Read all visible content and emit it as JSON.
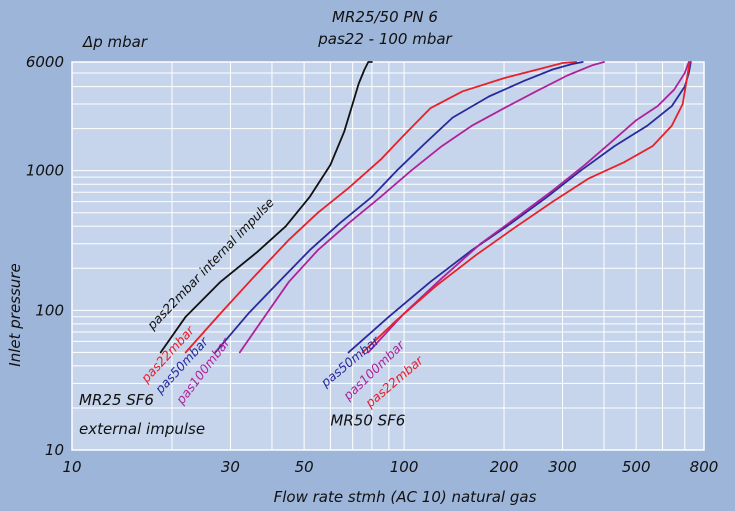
{
  "chart_data": {
    "type": "line",
    "title": "MR25/50 PN 6",
    "subtitle": "pas22 - 100 mbar",
    "xlabel": "Flow rate stmh (AC 10) natural gas",
    "ylabel": "Inlet pressure",
    "unit_label": "Δp  mbar",
    "x_scale": "log",
    "y_scale": "log",
    "xlim": [
      10,
      800
    ],
    "ylim": [
      10,
      6000
    ],
    "x_ticks": [
      10,
      30,
      50,
      100,
      200,
      300,
      500,
      800
    ],
    "x_tick_labels": [
      "10",
      "30",
      "50",
      "100",
      "200",
      "300",
      "500",
      "800"
    ],
    "y_ticks": [
      10,
      100,
      1000,
      6000
    ],
    "y_tick_labels": [
      "10",
      "100",
      "1000",
      "6000"
    ],
    "grid": true,
    "colors": {
      "background": "#9db5d9",
      "plot_area": "#c6d5ec",
      "grid": "#ffffff",
      "black": "#111111",
      "red": "#e8202a",
      "blue": "#2a2a9c",
      "magenta": "#b0229a"
    },
    "annotations": [
      {
        "text": "MR25 SF6",
        "x": 10.5,
        "y": 21
      },
      {
        "text": "external impulse",
        "x": 10.5,
        "y": 13
      },
      {
        "text": "MR50 SF6",
        "x": 60,
        "y": 15
      }
    ],
    "series": [
      {
        "group": "MR25 SF6",
        "label": "pas22mbar internal impulse",
        "color": "#111111",
        "label_anchor": {
          "x": 17.5,
          "y": 72
        },
        "x": [
          18.5,
          22,
          28,
          36,
          44,
          52,
          60,
          66,
          70,
          73,
          76,
          78,
          80
        ],
        "y": [
          50,
          90,
          160,
          260,
          400,
          650,
          1100,
          1900,
          3000,
          4200,
          5300,
          6000,
          6000
        ]
      },
      {
        "group": "MR25 SF6",
        "label": "pas22mbar",
        "color": "#e8202a",
        "label_anchor": {
          "x": 16.8,
          "y": 30
        },
        "x": [
          22,
          28,
          35,
          45,
          55,
          68,
          85,
          100,
          120,
          150,
          200,
          260,
          300,
          330
        ],
        "y": [
          50,
          95,
          170,
          320,
          500,
          750,
          1200,
          1800,
          2800,
          3700,
          4600,
          5400,
          5900,
          6000
        ]
      },
      {
        "group": "MR25 SF6",
        "label": "pas50mbar",
        "color": "#2a2a9c",
        "label_anchor": {
          "x": 18.5,
          "y": 25
        },
        "x": [
          27,
          34,
          42,
          52,
          64,
          80,
          95,
          115,
          140,
          180,
          230,
          280,
          320,
          345
        ],
        "y": [
          50,
          95,
          160,
          270,
          420,
          650,
          1000,
          1550,
          2400,
          3400,
          4400,
          5300,
          5800,
          6000
        ]
      },
      {
        "group": "MR25 SF6",
        "label": "pas100mbar",
        "color": "#b0229a",
        "label_anchor": {
          "x": 21.5,
          "y": 21
        },
        "x": [
          32,
          38,
          45,
          55,
          68,
          85,
          105,
          130,
          160,
          200,
          250,
          310,
          370,
          400
        ],
        "y": [
          50,
          90,
          160,
          270,
          420,
          650,
          1000,
          1500,
          2100,
          2800,
          3700,
          4800,
          5700,
          6000
        ]
      },
      {
        "group": "MR50 SF6",
        "label": "pas50mbar",
        "color": "#2a2a9c",
        "label_anchor": {
          "x": 58,
          "y": 28
        },
        "x": [
          68,
          90,
          120,
          160,
          210,
          270,
          340,
          430,
          540,
          640,
          700,
          720,
          730
        ],
        "y": [
          50,
          90,
          160,
          270,
          420,
          650,
          1000,
          1500,
          2100,
          2900,
          4000,
          5000,
          6000
        ]
      },
      {
        "group": "MR50 SF6",
        "label": "pas100mbar",
        "color": "#b0229a",
        "label_anchor": {
          "x": 68,
          "y": 22.5
        },
        "x": [
          78,
          100,
          130,
          170,
          220,
          280,
          350,
          420,
          500,
          580,
          650,
          700,
          720
        ],
        "y": [
          50,
          95,
          170,
          300,
          470,
          720,
          1100,
          1600,
          2300,
          2900,
          3800,
          5000,
          6000
        ]
      },
      {
        "group": "MR50 SF6",
        "label": "pas22mbar",
        "color": "#e8202a",
        "label_anchor": {
          "x": 79,
          "y": 20
        },
        "x": [
          75,
          95,
          125,
          165,
          215,
          280,
          360,
          460,
          560,
          640,
          690,
          710,
          720,
          725
        ],
        "y": [
          50,
          85,
          150,
          250,
          390,
          600,
          880,
          1150,
          1500,
          2100,
          3000,
          4500,
          5500,
          6000
        ]
      }
    ]
  }
}
